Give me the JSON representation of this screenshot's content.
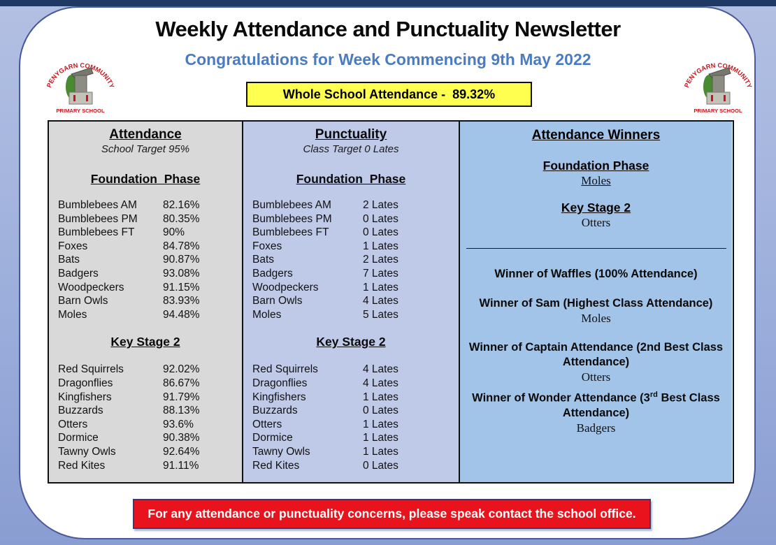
{
  "page": {
    "title": "Weekly Attendance and Punctuality Newsletter",
    "subtitle": "Congratulations for Week Commencing 9th May 2022",
    "whole_school_attendance": "Whole School Attendance -  89.32%",
    "footer_notice": "For any attendance or punctuality concerns, please speak contact the school office."
  },
  "logo": {
    "arc_text": "PENYGARN COMMUNITY",
    "bottom_text": "PRIMARY SCHOOL"
  },
  "attendance": {
    "title": "Attendance",
    "target": "School Target 95%",
    "foundation_heading": "Foundation  Phase",
    "foundation_rows": [
      [
        "Bumblebees AM",
        "82.16%"
      ],
      [
        "Bumblebees PM",
        "80.35%"
      ],
      [
        "Bumblebees FT",
        "90%"
      ],
      [
        "Foxes",
        "84.78%"
      ],
      [
        "Bats",
        "90.87%"
      ],
      [
        "Badgers",
        "93.08%"
      ],
      [
        "Woodpeckers",
        "91.15%"
      ],
      [
        "Barn Owls",
        "83.93%"
      ],
      [
        "Moles",
        "94.48%"
      ]
    ],
    "ks2_heading": "Key Stage 2",
    "ks2_rows": [
      [
        "Red Squirrels",
        "92.02%"
      ],
      [
        "Dragonflies",
        "86.67%"
      ],
      [
        "Kingfishers",
        "91.79%"
      ],
      [
        "Buzzards",
        "88.13%"
      ],
      [
        "Otters",
        "93.6%"
      ],
      [
        "Dormice",
        "90.38%"
      ],
      [
        "Tawny Owls",
        "92.64%"
      ],
      [
        "Red Kites",
        "91.11%"
      ]
    ]
  },
  "punctuality": {
    "title": "Punctuality",
    "target": "Class Target 0 Lates",
    "foundation_heading": "Foundation  Phase",
    "foundation_rows": [
      [
        "Bumblebees AM",
        "2 Lates"
      ],
      [
        "Bumblebees PM",
        "0 Lates"
      ],
      [
        "Bumblebees FT",
        "0 Lates"
      ],
      [
        "Foxes",
        "1 Lates"
      ],
      [
        "Bats",
        "2 Lates"
      ],
      [
        "Badgers",
        "7 Lates"
      ],
      [
        "Woodpeckers",
        "1 Lates"
      ],
      [
        "Barn Owls",
        "4 Lates"
      ],
      [
        "Moles",
        "5 Lates"
      ]
    ],
    "ks2_heading": "Key Stage 2",
    "ks2_rows": [
      [
        "Red Squirrels",
        "4 Lates"
      ],
      [
        "Dragonflies",
        "4 Lates"
      ],
      [
        "Kingfishers",
        "1 Lates"
      ],
      [
        "Buzzards",
        "0 Lates"
      ],
      [
        "Otters",
        "1 Lates"
      ],
      [
        "Dormice",
        "1 Lates"
      ],
      [
        "Tawny Owls",
        "1 Lates"
      ],
      [
        "Red Kites",
        "0 Lates"
      ]
    ]
  },
  "winners": {
    "title": "Attendance Winners",
    "foundation_heading": "Foundation Phase",
    "foundation_winner": "Moles",
    "ks2_heading": "Key Stage 2",
    "ks2_winner": "Otters",
    "awards": [
      {
        "title": "Winner of Waffles (100% Attendance)",
        "winner": ""
      },
      {
        "title": "Winner of Sam (Highest Class Attendance)",
        "winner": "Moles"
      },
      {
        "title": "Winner of Captain Attendance (2nd Best Class Attendance)",
        "winner": "Otters"
      },
      {
        "title_pre": "Winner of Wonder Attendance (3",
        "title_sup": "rd",
        "title_post": " Best Class Attendance)",
        "winner": "Badgers"
      }
    ]
  },
  "colors": {
    "subtitle_blue": "#4b7cc2",
    "yellow_banner": "#ffff4f",
    "red_banner": "#e8131d",
    "attendance_column_bg": "#d9d9d9",
    "punctuality_column_bg": "#bfcae8",
    "winners_column_bg": "#a2c4e8",
    "top_strip": "#203864",
    "page_background": "#9cadd9",
    "logo_red": "#c5161d"
  }
}
